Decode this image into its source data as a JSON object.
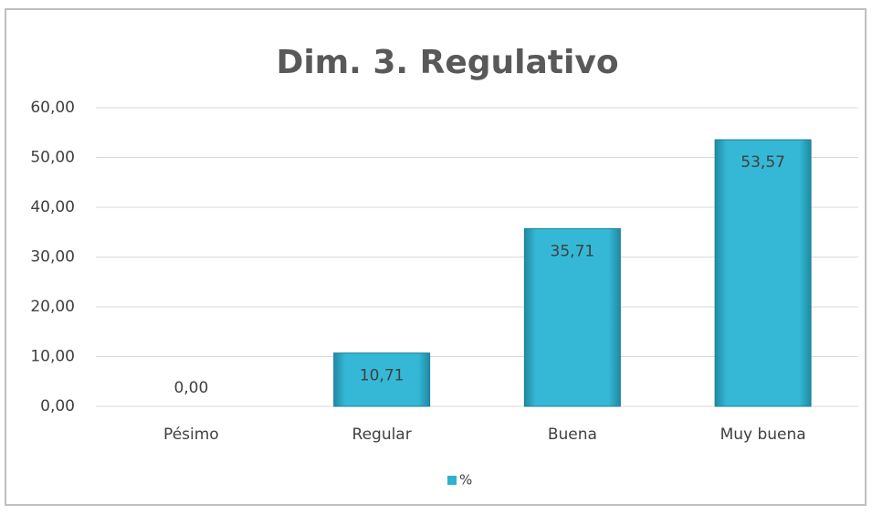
{
  "chart_data": {
    "type": "bar",
    "title": "Dim. 3. Regulativo",
    "categories": [
      "Pésimo",
      "Regular",
      "Buena",
      "Muy buena"
    ],
    "series": [
      {
        "name": "%",
        "color": "#2fb2cf",
        "values": [
          0,
          10.71,
          35.71,
          53.57
        ],
        "value_labels": [
          "0,00",
          "10,71",
          "35,71",
          "53,57"
        ]
      }
    ],
    "ylim": [
      0,
      60
    ],
    "yticks": [
      {
        "value": 0,
        "label": "0,00"
      },
      {
        "value": 10,
        "label": "10,00"
      },
      {
        "value": 20,
        "label": "20,00"
      },
      {
        "value": 30,
        "label": "30,00"
      },
      {
        "value": 40,
        "label": "40,00"
      },
      {
        "value": 50,
        "label": "50,00"
      },
      {
        "value": 60,
        "label": "60,00"
      }
    ],
    "grid": true,
    "legend": "bottom"
  }
}
